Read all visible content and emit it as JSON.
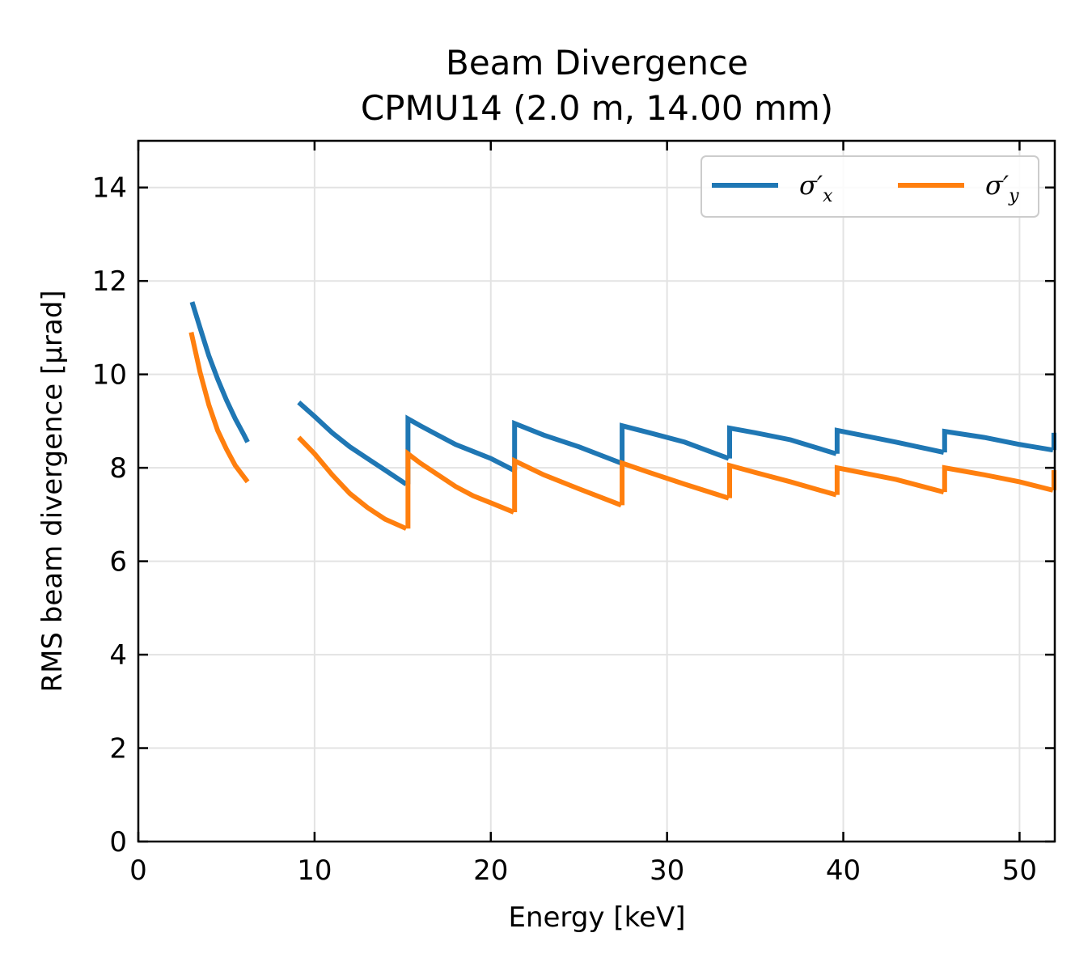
{
  "chart_data": {
    "type": "line",
    "title": [
      "Beam Divergence",
      "CPMU14 (2.0 m, 14.00 mm)"
    ],
    "xlabel": "Energy [keV]",
    "ylabel": "RMS beam divergence [μrad]",
    "xlim": [
      0,
      52
    ],
    "ylim": [
      0,
      15
    ],
    "xticks": [
      0,
      10,
      20,
      30,
      40,
      50
    ],
    "yticks": [
      0,
      2,
      4,
      6,
      8,
      10,
      12,
      14
    ],
    "grid": true,
    "legend": {
      "placement": "top-right",
      "columns": 2
    },
    "series": [
      {
        "name": "σ'x",
        "name_base": "σ′",
        "name_sub": "x",
        "color": "#1f77b4",
        "segments": [
          [
            [
              3.05,
              11.55
            ],
            [
              3.5,
              11.0
            ],
            [
              4.0,
              10.4
            ],
            [
              4.5,
              9.9
            ],
            [
              5.0,
              9.45
            ],
            [
              5.5,
              9.05
            ],
            [
              6.0,
              8.7
            ],
            [
              6.2,
              8.55
            ]
          ],
          [
            [
              9.1,
              9.4
            ],
            [
              10,
              9.1
            ],
            [
              11,
              8.75
            ],
            [
              12,
              8.45
            ],
            [
              13,
              8.2
            ],
            [
              14,
              7.95
            ],
            [
              15.2,
              7.65
            ]
          ],
          [
            [
              15.3,
              7.65
            ],
            [
              15.3,
              9.05
            ],
            [
              16,
              8.9
            ],
            [
              17,
              8.7
            ],
            [
              18,
              8.5
            ],
            [
              19,
              8.35
            ],
            [
              20,
              8.2
            ],
            [
              21.3,
              7.95
            ]
          ],
          [
            [
              21.35,
              7.95
            ],
            [
              21.35,
              8.95
            ],
            [
              23,
              8.7
            ],
            [
              25,
              8.45
            ],
            [
              27.4,
              8.1
            ]
          ],
          [
            [
              27.45,
              8.1
            ],
            [
              27.45,
              8.9
            ],
            [
              29,
              8.75
            ],
            [
              31,
              8.55
            ],
            [
              33.5,
              8.2
            ]
          ],
          [
            [
              33.55,
              8.2
            ],
            [
              33.55,
              8.85
            ],
            [
              35,
              8.75
            ],
            [
              37,
              8.6
            ],
            [
              39.6,
              8.3
            ]
          ],
          [
            [
              39.65,
              8.3
            ],
            [
              39.65,
              8.8
            ],
            [
              41,
              8.7
            ],
            [
              43,
              8.55
            ],
            [
              45.7,
              8.33
            ]
          ],
          [
            [
              45.75,
              8.33
            ],
            [
              45.75,
              8.78
            ],
            [
              48,
              8.65
            ],
            [
              50,
              8.5
            ],
            [
              51.9,
              8.38
            ]
          ],
          [
            [
              51.95,
              8.38
            ],
            [
              51.95,
              8.75
            ]
          ]
        ]
      },
      {
        "name": "σ'y",
        "name_base": "σ′",
        "name_sub": "y",
        "color": "#ff7f0e",
        "segments": [
          [
            [
              3.0,
              10.9
            ],
            [
              3.5,
              10.05
            ],
            [
              4.0,
              9.35
            ],
            [
              4.5,
              8.8
            ],
            [
              5.0,
              8.4
            ],
            [
              5.5,
              8.05
            ],
            [
              6.0,
              7.8
            ],
            [
              6.2,
              7.7
            ]
          ],
          [
            [
              9.1,
              8.65
            ],
            [
              10,
              8.3
            ],
            [
              11,
              7.85
            ],
            [
              12,
              7.45
            ],
            [
              13,
              7.15
            ],
            [
              14,
              6.9
            ],
            [
              15.2,
              6.7
            ]
          ],
          [
            [
              15.3,
              6.7
            ],
            [
              15.3,
              8.3
            ],
            [
              16,
              8.1
            ],
            [
              17,
              7.85
            ],
            [
              18,
              7.6
            ],
            [
              19,
              7.4
            ],
            [
              20,
              7.25
            ],
            [
              21.3,
              7.05
            ]
          ],
          [
            [
              21.35,
              7.05
            ],
            [
              21.35,
              8.15
            ],
            [
              23,
              7.85
            ],
            [
              25,
              7.55
            ],
            [
              27.4,
              7.2
            ]
          ],
          [
            [
              27.45,
              7.2
            ],
            [
              27.45,
              8.1
            ],
            [
              29,
              7.9
            ],
            [
              31,
              7.65
            ],
            [
              33.5,
              7.35
            ]
          ],
          [
            [
              33.55,
              7.35
            ],
            [
              33.55,
              8.05
            ],
            [
              35,
              7.9
            ],
            [
              37,
              7.7
            ],
            [
              39.6,
              7.42
            ]
          ],
          [
            [
              39.65,
              7.42
            ],
            [
              39.65,
              8.0
            ],
            [
              41,
              7.9
            ],
            [
              43,
              7.75
            ],
            [
              45.7,
              7.48
            ]
          ],
          [
            [
              45.75,
              7.48
            ],
            [
              45.75,
              8.0
            ],
            [
              48,
              7.85
            ],
            [
              50,
              7.7
            ],
            [
              51.9,
              7.52
            ]
          ],
          [
            [
              51.95,
              7.52
            ],
            [
              51.95,
              7.95
            ]
          ]
        ]
      }
    ]
  }
}
